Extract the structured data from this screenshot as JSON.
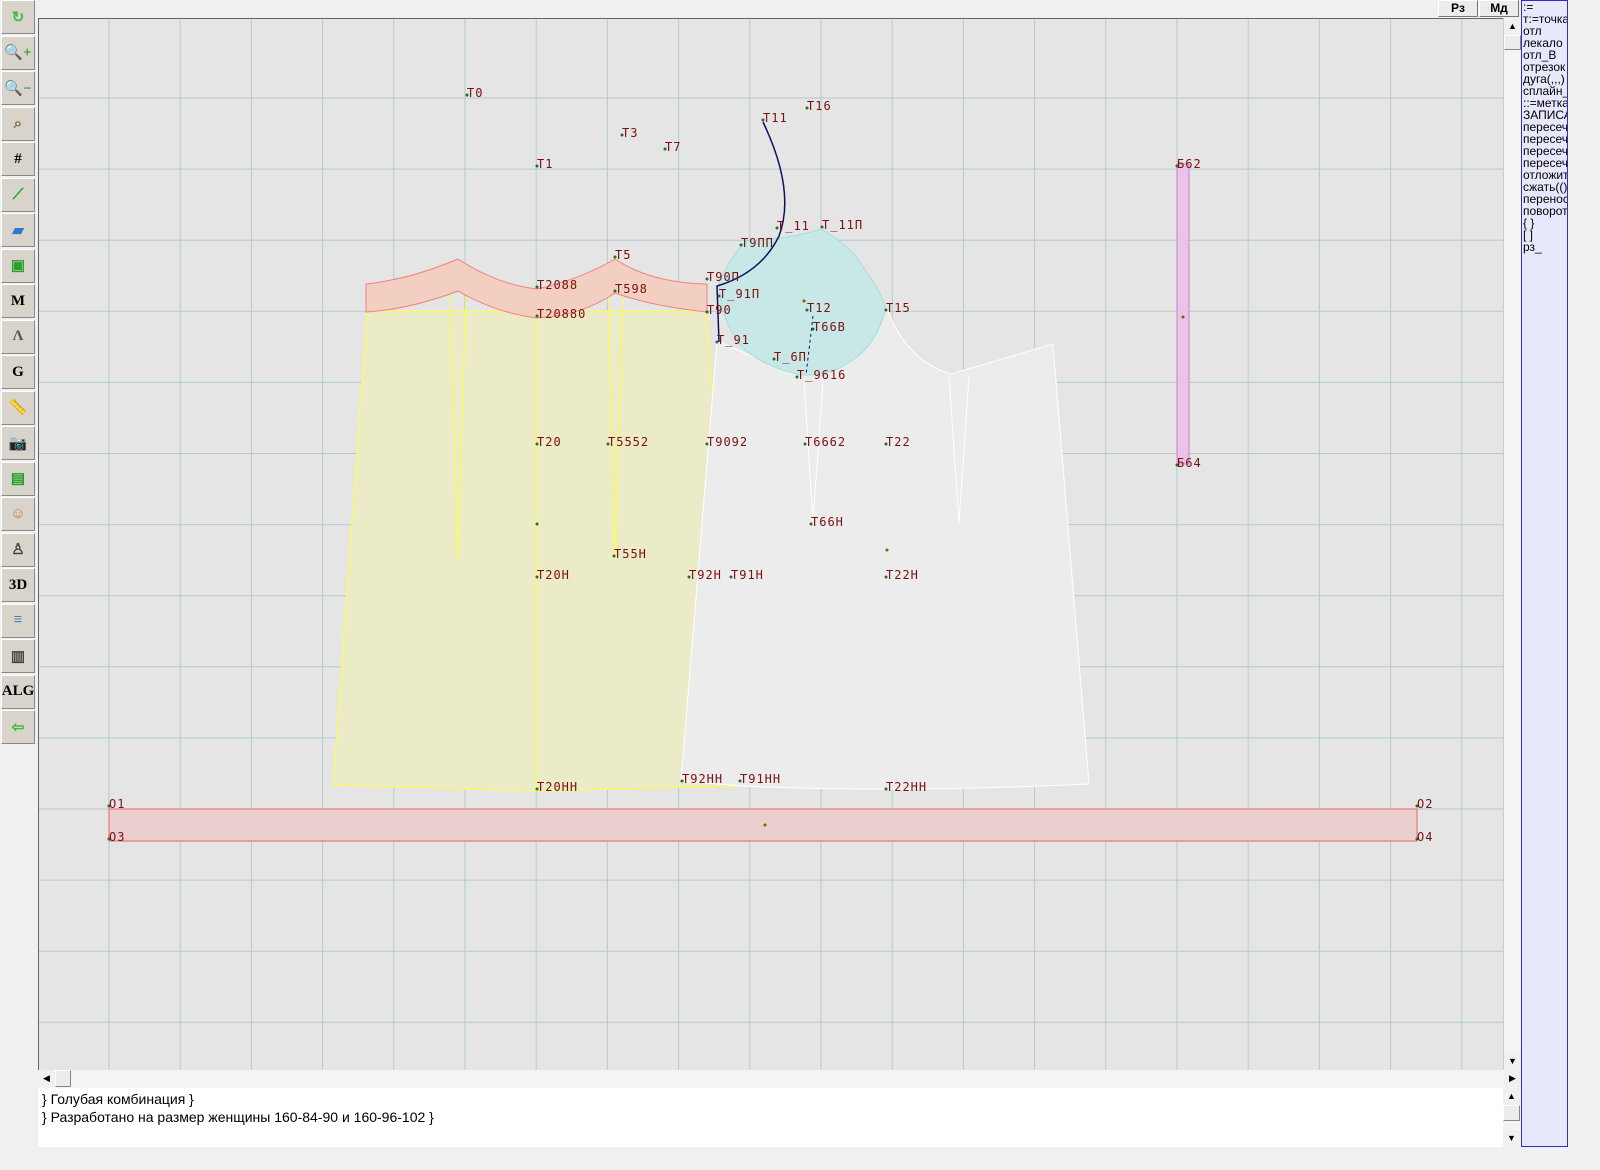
{
  "toolbar": [
    {
      "name": "refresh-icon",
      "glyph": "↻",
      "color": "#3cc03c"
    },
    {
      "name": "zoom-in-icon",
      "glyph": "🔍+",
      "color": "#2a9a2a"
    },
    {
      "name": "zoom-out-icon",
      "glyph": "🔍−",
      "color": "#2a9a2a"
    },
    {
      "name": "zoom-pattern-icon",
      "glyph": "⌕",
      "color": "#8a6a40"
    },
    {
      "name": "grid-icon",
      "glyph": "#",
      "color": "#000"
    },
    {
      "name": "line-segment-icon",
      "glyph": "⟋",
      "color": "#20a020"
    },
    {
      "name": "map-icon",
      "glyph": "▰",
      "color": "#2a7ad0"
    },
    {
      "name": "pattern-piece-icon",
      "glyph": "▣",
      "color": "#2aa02a"
    },
    {
      "name": "pattern-m-icon",
      "glyph": "M",
      "color": "#000"
    },
    {
      "name": "compass-icon",
      "glyph": "Ʌ",
      "color": "#555"
    },
    {
      "name": "pattern-g-icon",
      "glyph": "G",
      "color": "#000"
    },
    {
      "name": "ruler-icon",
      "glyph": "📏",
      "color": "#3070c0"
    },
    {
      "name": "camera-icon",
      "glyph": "📷",
      "color": "#333"
    },
    {
      "name": "spreadsheet-icon",
      "glyph": "▤",
      "color": "#20a020"
    },
    {
      "name": "model-photo-icon",
      "glyph": "☺",
      "color": "#c08040"
    },
    {
      "name": "jacket-icon",
      "glyph": "♙",
      "color": "#444"
    },
    {
      "name": "3d-icon",
      "glyph": "3D",
      "color": "#000"
    },
    {
      "name": "document-list-icon",
      "glyph": "≡",
      "color": "#5080a0"
    },
    {
      "name": "books-icon",
      "glyph": "▥",
      "color": "#444"
    },
    {
      "name": "alg-icon",
      "glyph": "ALG",
      "color": "#000"
    },
    {
      "name": "exit-icon",
      "glyph": "⇦",
      "color": "#30c030"
    }
  ],
  "top_buttons": {
    "rz": "Рз",
    "md": "Мд"
  },
  "command_panel": [
    ":=",
    "т:=точка",
    "отл",
    "лекало",
    "отл_В",
    "отрезок",
    "дуга(,,,)",
    "сплайн_",
    "::=метка",
    "ЗАПИСАТЬ",
    "пересеч",
    "пересеч",
    "пересеч",
    "пересеч",
    "отложить",
    "сжать(()",
    "перенос",
    "поворот",
    "{ }",
    "[ ]",
    "рз_"
  ],
  "point_labels": [
    "Т0",
    "Т3",
    "Т7",
    "Т1",
    "Т11",
    "Т16",
    "Т9ПП",
    "Т_11",
    "Т_11П",
    "Т5",
    "Т2088",
    "Т598",
    "Т90П",
    "Т_91П",
    "Т90",
    "Т12",
    "Т66В",
    "Т15",
    "Т20880",
    "Т_91",
    "Т_6П",
    "Т_9616",
    "Т20",
    "Т5552",
    "Т9092",
    "Т6662",
    "Т22",
    "Т66Н",
    "Т55Н",
    "Т20Н",
    "Т92Н",
    "Т91Н",
    "Т22Н",
    "Т20НН",
    "Т92НН",
    "Т91НН",
    "Т22НН",
    "О1",
    "О2",
    "О3",
    "О4",
    "Б62",
    "Б64"
  ],
  "notes": [
    "} Голубая комбинация }",
    "} Разработано на размер женщины 160-84-90 и 160-96-102 }"
  ],
  "colors": {
    "canvas": "#e5e5e5",
    "grid": "#b4cccc",
    "label": "#7a1010",
    "yoke": "#f2cfc0",
    "back": "#ecebc8",
    "sleeve": "#c8e8e8",
    "bar": "#ebcfcf",
    "marker": "#e8c4e8",
    "curve": "#101060"
  }
}
